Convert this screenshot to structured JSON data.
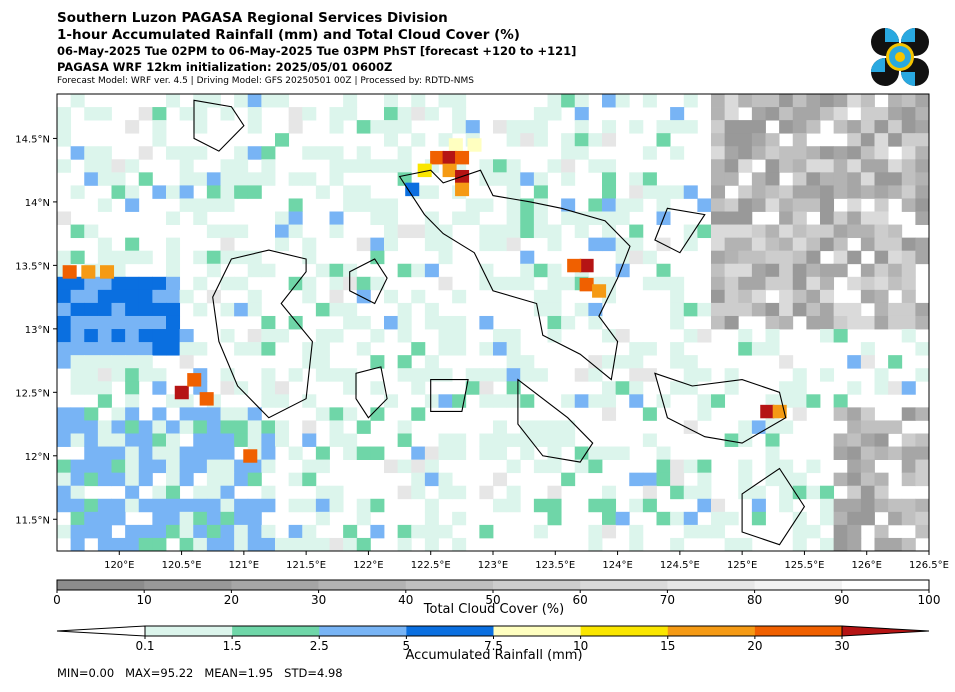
{
  "header": {
    "title": "Southern Luzon PAGASA Regional Services Division",
    "subtitle": "1-hour Accumulated Rainfall (mm) and Total Cloud Cover (%)",
    "valid_time": "06-May-2025 Tue 02PM to 06-May-2025 Tue 03PM PhST [forecast +120 to +121]",
    "init": "PAGASA WRF 12km initialization: 2025/05/01 0600Z",
    "model_info": "Forecast Model: WRF ver. 4.5 | Driving Model: GFS 20250501 00Z | Processed by: RDTD-NMS"
  },
  "logo": {
    "name": "pagasa-logo",
    "colors": [
      "#111111",
      "#29a8e0",
      "#f5c400"
    ]
  },
  "map": {
    "lon_range": [
      119.5,
      126.5
    ],
    "lat_range": [
      11.25,
      14.85
    ],
    "x_ticks": [
      "120°E",
      "120.5°E",
      "121°E",
      "121.5°E",
      "122°E",
      "122.5°E",
      "123°E",
      "123.5°E",
      "124°E",
      "124.5°E",
      "125°E",
      "125.5°E",
      "126°E",
      "126.5°E"
    ],
    "y_ticks": [
      "14.5°N",
      "14°N",
      "13.5°N",
      "13°N",
      "12.5°N",
      "12°N",
      "11.5°N"
    ]
  },
  "chart_data": {
    "type": "heatmap",
    "title": "1-hour Accumulated Rainfall (mm) and Total Cloud Cover (%)",
    "cloud_cover": {
      "label": "Total Cloud Cover (%)",
      "ticks": [
        "0",
        "10",
        "20",
        "30",
        "40",
        "50",
        "60",
        "70",
        "80",
        "90",
        "100"
      ],
      "colors": [
        "#8c8c8c",
        "#999999",
        "#a6a6a6",
        "#b3b3b3",
        "#c0c0c0",
        "#cdcdcd",
        "#dadada",
        "#e6e6e6",
        "#f2f2f2",
        "#ffffff"
      ]
    },
    "rainfall": {
      "label": "Accumulated Rainfall (mm)",
      "ticks": [
        "0.1",
        "1.5",
        "2.5",
        "5",
        "7.5",
        "10",
        "15",
        "20",
        "30"
      ],
      "colors": [
        "#dcf5ec",
        "#6fd6a8",
        "#78b4f5",
        "#0a6fe0",
        "#ffffc0",
        "#fae600",
        "#f59a14",
        "#f06000",
        "#b51414"
      ]
    },
    "rain_cells": [
      {
        "lon": 122.7,
        "lat": 14.45,
        "mm": 7.5
      },
      {
        "lon": 122.85,
        "lat": 14.45,
        "mm": 7.5
      },
      {
        "lon": 122.55,
        "lat": 14.35,
        "mm": 20
      },
      {
        "lon": 122.65,
        "lat": 14.35,
        "mm": 30
      },
      {
        "lon": 122.75,
        "lat": 14.35,
        "mm": 20
      },
      {
        "lon": 122.45,
        "lat": 14.25,
        "mm": 10
      },
      {
        "lon": 122.65,
        "lat": 14.25,
        "mm": 15
      },
      {
        "lon": 122.75,
        "lat": 14.2,
        "mm": 30
      },
      {
        "lon": 122.75,
        "lat": 14.1,
        "mm": 15
      },
      {
        "lon": 122.35,
        "lat": 14.1,
        "mm": 5
      },
      {
        "lon": 123.75,
        "lat": 13.5,
        "mm": 30
      },
      {
        "lon": 123.65,
        "lat": 13.5,
        "mm": 20
      },
      {
        "lon": 123.75,
        "lat": 13.35,
        "mm": 20
      },
      {
        "lon": 123.85,
        "lat": 13.3,
        "mm": 15
      },
      {
        "lon": 119.6,
        "lat": 13.45,
        "mm": 20
      },
      {
        "lon": 119.75,
        "lat": 13.45,
        "mm": 15
      },
      {
        "lon": 119.9,
        "lat": 13.45,
        "mm": 15
      },
      {
        "lon": 120.5,
        "lat": 12.5,
        "mm": 30
      },
      {
        "lon": 120.6,
        "lat": 12.6,
        "mm": 20
      },
      {
        "lon": 120.7,
        "lat": 12.45,
        "mm": 20
      },
      {
        "lon": 121.05,
        "lat": 12.0,
        "mm": 20
      },
      {
        "lon": 125.2,
        "lat": 12.35,
        "mm": 30
      },
      {
        "lon": 125.3,
        "lat": 12.35,
        "mm": 15
      }
    ]
  },
  "stats": "MIN=0.00   MAX=95.22   MEAN=1.95   STD=4.98"
}
